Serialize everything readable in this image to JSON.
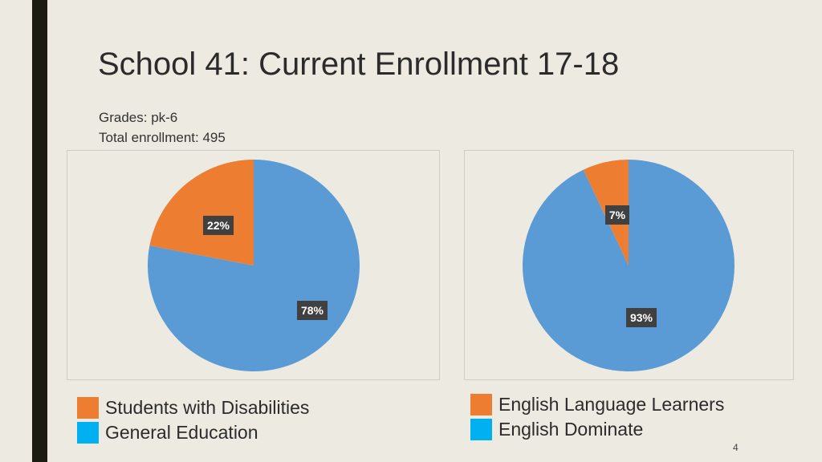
{
  "slide": {
    "title": "School 41: Current Enrollment 17-18",
    "grades": "Grades: pk-6",
    "total_enrollment": "Total enrollment: 495",
    "page_number": "4"
  },
  "colors": {
    "orange": "#ed7d31",
    "blue": "#5b9bd5",
    "legend_blue": "#00b0f0",
    "label_bg": "#404040"
  },
  "chart_data": [
    {
      "type": "pie",
      "slices": [
        {
          "name": "Students with Disabilities",
          "value": 22,
          "label": "22%",
          "color": "#ed7d31",
          "legend_color": "#ed7d31"
        },
        {
          "name": "General Education",
          "value": 78,
          "label": "78%",
          "color": "#5b9bd5",
          "legend_color": "#00b0f0"
        }
      ]
    },
    {
      "type": "pie",
      "slices": [
        {
          "name": "English Language Learners",
          "value": 7,
          "label": "7%",
          "color": "#ed7d31",
          "legend_color": "#ed7d31"
        },
        {
          "name": "English Dominate",
          "value": 93,
          "label": "93%",
          "color": "#5b9bd5",
          "legend_color": "#00b0f0"
        }
      ]
    }
  ]
}
